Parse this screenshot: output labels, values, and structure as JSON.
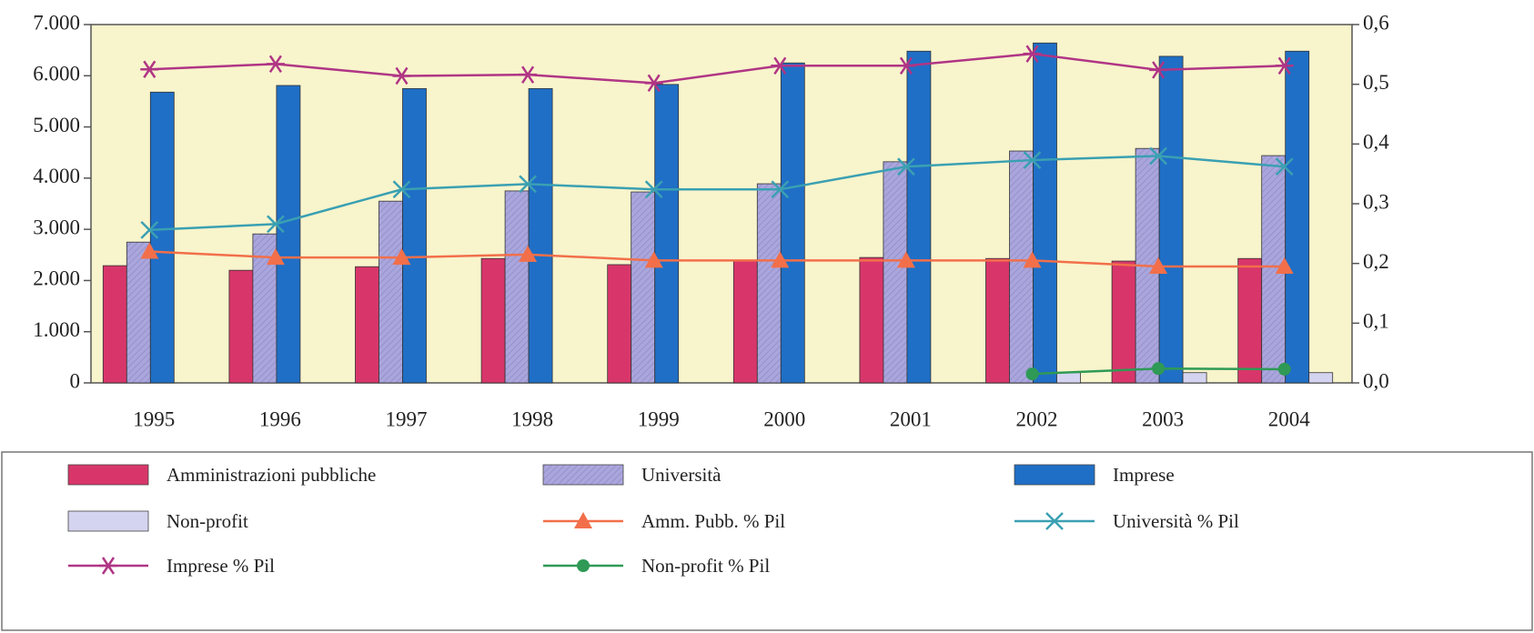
{
  "chart_data": {
    "type": "bar",
    "categories": [
      "1995",
      "1996",
      "1997",
      "1998",
      "1999",
      "2000",
      "2001",
      "2002",
      "2003",
      "2004"
    ],
    "ylim": [
      0,
      7000
    ],
    "yticks": [
      0,
      {
        "value": 1000,
        "label": "1.000"
      },
      {
        "value": 2000,
        "label": "2.000"
      },
      {
        "value": 3000,
        "label": "3.000"
      },
      {
        "value": 4000,
        "label": "4.000"
      },
      {
        "value": 5000,
        "label": "5.000"
      },
      {
        "value": 6000,
        "label": "6.000"
      },
      {
        "value": 7000,
        "label": "7.000"
      }
    ],
    "y2lim": [
      0,
      0.6
    ],
    "y2ticks": [
      {
        "value": 0,
        "label": "0,0"
      },
      {
        "value": 0.1,
        "label": "0,1"
      },
      {
        "value": 0.2,
        "label": "0,2"
      },
      {
        "value": 0.3,
        "label": "0,3"
      },
      {
        "value": 0.4,
        "label": "0,4"
      },
      {
        "value": 0.5,
        "label": "0,5"
      },
      {
        "value": 0.6,
        "label": "0,6"
      }
    ],
    "series": [
      {
        "name": "Amministrazioni pubbliche",
        "color": "#d8366a",
        "values": [
          2290,
          2200,
          2270,
          2430,
          2310,
          2380,
          2450,
          2430,
          2380,
          2430
        ]
      },
      {
        "name": "Università",
        "color": "#aaa6dc",
        "hatch": true,
        "values": [
          2750,
          2910,
          3550,
          3750,
          3730,
          3890,
          4320,
          4530,
          4580,
          4440
        ]
      },
      {
        "name": "Imprese",
        "color": "#1f6fc6",
        "values": [
          5680,
          5810,
          5750,
          5750,
          5830,
          6250,
          6480,
          6640,
          6380,
          6480
        ]
      },
      {
        "name": "Non-profit",
        "color": "#d4d4f0",
        "values": [
          null,
          null,
          null,
          null,
          null,
          null,
          null,
          200,
          200,
          200
        ]
      },
      {
        "name": "Amm. Pubb. % Pil",
        "color": "#f26f4a",
        "axis": "y2",
        "marker": "triangle",
        "values": [
          0.22,
          0.21,
          0.21,
          0.215,
          0.205,
          0.205,
          0.205,
          0.205,
          0.195,
          0.195
        ]
      },
      {
        "name": "Università % Pil",
        "color": "#3aa0b2",
        "axis": "y2",
        "marker": "x",
        "values": [
          0.256,
          0.266,
          0.324,
          0.333,
          0.324,
          0.324,
          0.362,
          0.373,
          0.38,
          0.362
        ]
      },
      {
        "name": "Imprese % Pil",
        "color": "#b03585",
        "axis": "y2",
        "marker": "star",
        "values": [
          0.525,
          0.534,
          0.514,
          0.516,
          0.502,
          0.531,
          0.531,
          0.551,
          0.524,
          0.531
        ]
      },
      {
        "name": "Non-profit % Pil",
        "color": "#2e9a55",
        "axis": "y2",
        "marker": "circle",
        "values": [
          null,
          null,
          null,
          null,
          null,
          null,
          null,
          0.015,
          0.024,
          0.023
        ]
      }
    ]
  }
}
